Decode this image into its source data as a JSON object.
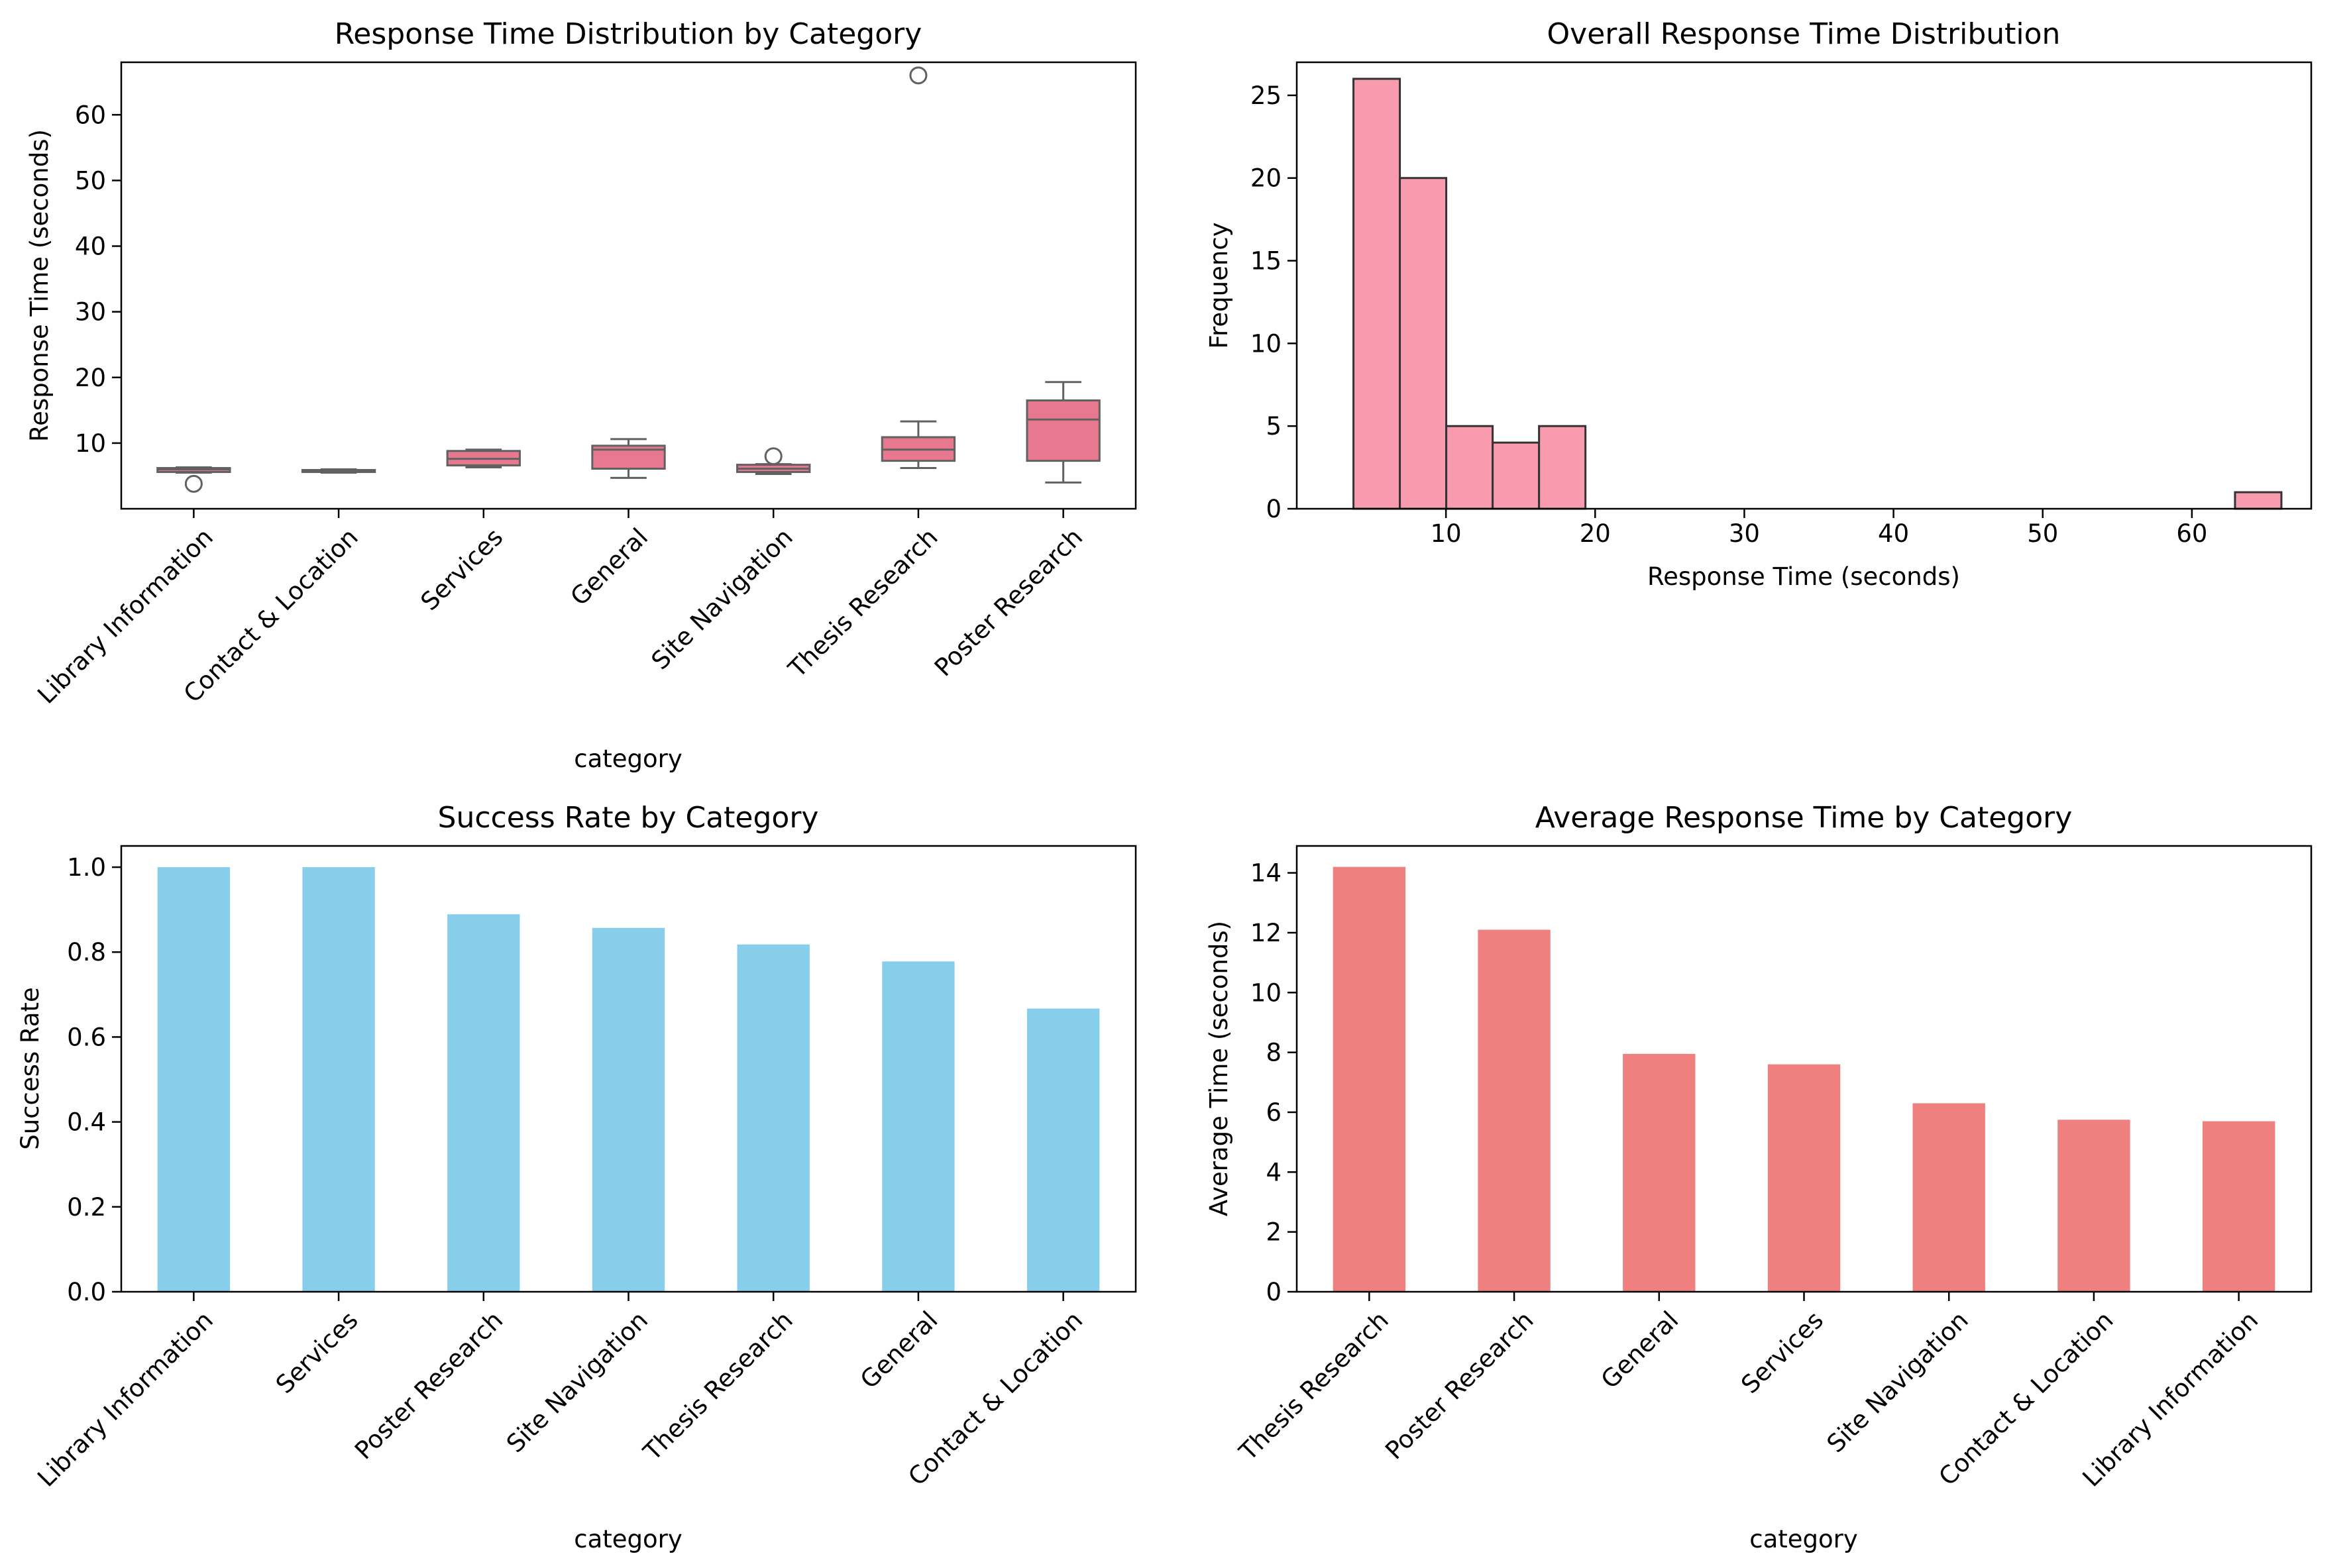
{
  "chart_data": [
    {
      "type": "box",
      "title": "Response Time Distribution by Category",
      "xlabel": "category",
      "ylabel": "Response Time (seconds)",
      "ylim": [
        0,
        68
      ],
      "yticks": [
        10,
        20,
        30,
        40,
        50,
        60
      ],
      "categories": [
        "Library Information",
        "Contact & Location",
        "Services",
        "General",
        "Site Navigation",
        "Thesis Research",
        "Poster Research"
      ],
      "boxes": [
        {
          "whislo": 5.5,
          "q1": 5.6,
          "med": 6.0,
          "q3": 6.2,
          "whishi": 6.3,
          "fliers": [
            3.8
          ]
        },
        {
          "whislo": 5.5,
          "q1": 5.6,
          "med": 5.8,
          "q3": 5.9,
          "whishi": 6.0,
          "fliers": []
        },
        {
          "whislo": 6.3,
          "q1": 6.6,
          "med": 7.6,
          "q3": 8.8,
          "whishi": 9.0,
          "fliers": []
        },
        {
          "whislo": 4.7,
          "q1": 6.1,
          "med": 9.0,
          "q3": 9.6,
          "whishi": 10.6,
          "fliers": []
        },
        {
          "whislo": 5.3,
          "q1": 5.6,
          "med": 6.1,
          "q3": 6.7,
          "whishi": 6.8,
          "fliers": [
            8.0
          ]
        },
        {
          "whislo": 6.2,
          "q1": 7.3,
          "med": 9.0,
          "q3": 10.9,
          "whishi": 13.3,
          "fliers": [
            66.0
          ]
        },
        {
          "whislo": 4.0,
          "q1": 7.3,
          "med": 13.6,
          "q3": 16.5,
          "whishi": 19.3,
          "fliers": []
        }
      ],
      "color": "#E8788F"
    },
    {
      "type": "histogram",
      "title": "Overall Response Time Distribution",
      "xlabel": "Response Time (seconds)",
      "ylabel": "Frequency",
      "xlim": [
        0,
        68
      ],
      "ylim": [
        0,
        27
      ],
      "xticks": [
        10,
        20,
        30,
        40,
        50,
        60
      ],
      "yticks": [
        0,
        5,
        10,
        15,
        20,
        25
      ],
      "bin_edges": [
        3.8,
        6.91,
        10.02,
        13.13,
        16.24,
        19.35,
        22.46,
        25.57,
        28.68,
        31.79,
        34.9,
        38.01,
        41.12,
        44.23,
        47.34,
        50.45,
        53.56,
        56.67,
        59.78,
        62.89,
        66.0
      ],
      "counts": [
        26,
        20,
        5,
        4,
        5,
        0,
        0,
        0,
        0,
        0,
        0,
        0,
        0,
        0,
        0,
        0,
        0,
        0,
        0,
        1
      ],
      "color": "#F89BAE"
    },
    {
      "type": "bar",
      "title": "Success Rate by Category",
      "xlabel": "category",
      "ylabel": "Success Rate",
      "ylim": [
        0,
        1.05
      ],
      "yticks": [
        "0.0",
        "0.2",
        "0.4",
        "0.6",
        "0.8",
        "1.0"
      ],
      "categories": [
        "Library Information",
        "Services",
        "Poster Research",
        "Site Navigation",
        "Thesis Research",
        "General",
        "Contact & Location"
      ],
      "values": [
        1.0,
        1.0,
        0.889,
        0.857,
        0.818,
        0.778,
        0.667
      ],
      "color": "#87CEEB"
    },
    {
      "type": "bar",
      "title": "Average Response Time by Category",
      "xlabel": "category",
      "ylabel": "Average Time (seconds)",
      "ylim": [
        0,
        14.9
      ],
      "yticks": [
        0,
        2,
        4,
        6,
        8,
        10,
        12,
        14
      ],
      "categories": [
        "Thesis Research",
        "Poster Research",
        "General",
        "Services",
        "Site Navigation",
        "Contact & Location",
        "Library Information"
      ],
      "values": [
        14.2,
        12.1,
        7.95,
        7.6,
        6.3,
        5.75,
        5.7
      ],
      "color": "#F08080"
    }
  ]
}
